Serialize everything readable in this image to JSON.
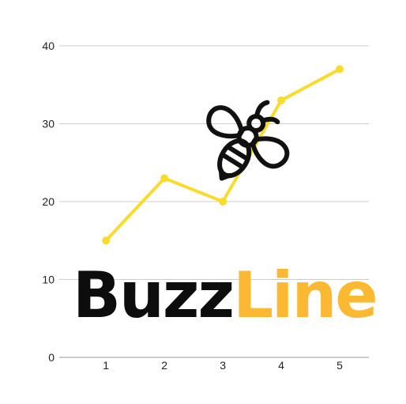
{
  "chart_data": {
    "type": "line",
    "x": [
      1,
      2,
      3,
      4,
      5
    ],
    "y": [
      15,
      23,
      20,
      33,
      37
    ],
    "xlim": [
      0.2,
      5.5
    ],
    "ylim": [
      0,
      40
    ],
    "yticks": [
      0,
      10,
      20,
      30,
      40
    ],
    "xticks": [
      1,
      2,
      3,
      4,
      5
    ],
    "grid": "horizontal",
    "line_color": "#f7dc2e",
    "grid_color": "#cccccc",
    "axis_color": "#999999"
  },
  "logo": {
    "part1": "Buzz",
    "part2": "Line",
    "part1_color": "#0d0d0d",
    "part2_color": "#fbb933",
    "icon": "bee-icon"
  }
}
